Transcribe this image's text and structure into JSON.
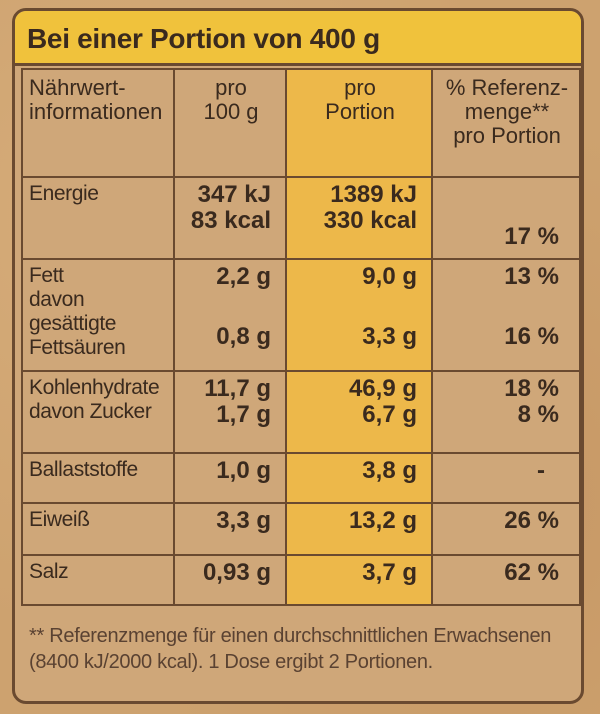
{
  "header": {
    "title": "Bei einer Portion von 400 g"
  },
  "columns": {
    "nutrient": "Nährwert-informationen",
    "nutrient_line1": "Nährwert-",
    "nutrient_line2": "informationen",
    "per100_line1": "pro",
    "per100_line2": "100 g",
    "portion_line1": "pro",
    "portion_line2": "Portion",
    "ref_line1": "% Referenz-",
    "ref_line2": "menge**",
    "ref_line3": "pro Portion"
  },
  "rows": {
    "energy": {
      "label": "Energie",
      "per100_kj": "347 kJ",
      "per100_kcal": "83 kcal",
      "portion_kj": "1389 kJ",
      "portion_kcal": "330 kcal",
      "ref": "17 %"
    },
    "fat": {
      "label": "Fett",
      "per100": "2,2 g",
      "portion": "9,0 g",
      "ref": "13 %",
      "sat_label_line1": "davon gesättigte",
      "sat_label_line2": "Fettsäuren",
      "sat_per100": "0,8 g",
      "sat_portion": "3,3 g",
      "sat_ref": "16 %"
    },
    "carbs": {
      "label": "Kohlenhydrate",
      "per100": "11,7 g",
      "portion": "46,9 g",
      "ref": "18 %",
      "sugar_label": "davon Zucker",
      "sugar_per100": "1,7 g",
      "sugar_portion": "6,7 g",
      "sugar_ref": "8 %"
    },
    "fiber": {
      "label": "Ballaststoffe",
      "per100": "1,0 g",
      "portion": "3,8 g",
      "ref": "-"
    },
    "protein": {
      "label": "Eiweiß",
      "per100": "3,3 g",
      "portion": "13,2 g",
      "ref": "26 %"
    },
    "salt": {
      "label": "Salz",
      "per100": "0,93 g",
      "portion": "3,7 g",
      "ref": "62 %"
    }
  },
  "footnote": {
    "line1": "** Referenzmenge für einen durchschnittlichen Erwachsenen",
    "line2": "(8400 kJ/2000 kcal). 1 Dose ergibt 2 Portionen."
  },
  "colors": {
    "header_yellow": "#f0c23c",
    "portion_column": "#edb84a",
    "cardboard": "#cfa779",
    "ink": "#3a2a1e"
  }
}
